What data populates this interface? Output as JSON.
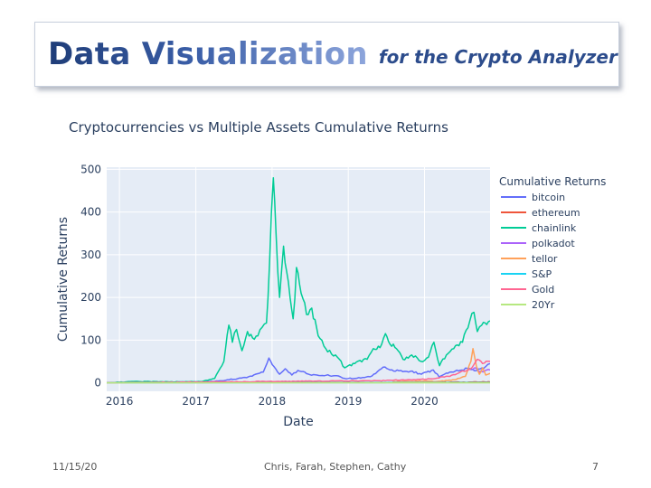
{
  "slide": {
    "title_main": "Data Visualization",
    "title_sub": "for the Crypto Analyzer",
    "footer_date": "11/15/20",
    "footer_authors": "Chris, Farah, Stephen, Cathy",
    "page_number": "7"
  },
  "chart_data": {
    "type": "line",
    "title": "Cryptocurrencies vs Multiple Assets Cumulative Returns",
    "xlabel": "Date",
    "ylabel": "Cumulative Returns",
    "xlim": [
      "2015-11-01",
      "2020-11-10"
    ],
    "ylim": [
      -20,
      505
    ],
    "x_ticks": [
      "2016",
      "2017",
      "2018",
      "2019",
      "2020"
    ],
    "y_ticks": [
      0,
      100,
      200,
      300,
      400,
      500
    ],
    "grid": true,
    "legend_title": "Cumulative Returns",
    "legend_position": "right",
    "series": [
      {
        "name": "bitcoin",
        "color": "#636efa",
        "points": [
          [
            "2015-11-01",
            0
          ],
          [
            "2016-06-01",
            1
          ],
          [
            "2016-12-31",
            2
          ],
          [
            "2017-04-01",
            3
          ],
          [
            "2017-06-01",
            7
          ],
          [
            "2017-09-01",
            12
          ],
          [
            "2017-11-20",
            25
          ],
          [
            "2017-12-17",
            58
          ],
          [
            "2018-01-10",
            38
          ],
          [
            "2018-02-06",
            20
          ],
          [
            "2018-03-05",
            33
          ],
          [
            "2018-04-06",
            18
          ],
          [
            "2018-05-05",
            29
          ],
          [
            "2018-07-01",
            19
          ],
          [
            "2018-11-15",
            16
          ],
          [
            "2018-12-15",
            10
          ],
          [
            "2019-03-01",
            11
          ],
          [
            "2019-04-15",
            14
          ],
          [
            "2019-06-26",
            37
          ],
          [
            "2019-07-20",
            30
          ],
          [
            "2019-09-01",
            28
          ],
          [
            "2019-10-26",
            27
          ],
          [
            "2019-12-17",
            20
          ],
          [
            "2020-02-12",
            30
          ],
          [
            "2020-03-12",
            13
          ],
          [
            "2020-05-01",
            25
          ],
          [
            "2020-08-01",
            34
          ],
          [
            "2020-09-05",
            28
          ],
          [
            "2020-10-20",
            38
          ],
          [
            "2020-11-10",
            45
          ]
        ]
      },
      {
        "name": "ethereum",
        "color": "#ef553b",
        "points": [
          [
            "2015-11-01",
            0
          ],
          [
            "2017-06-01",
            0.5
          ],
          [
            "2018-01-13",
            2
          ],
          [
            "2018-06-01",
            1
          ],
          [
            "2019-06-01",
            0.8
          ],
          [
            "2020-02-01",
            1
          ],
          [
            "2020-08-01",
            1.5
          ],
          [
            "2020-11-10",
            2
          ]
        ]
      },
      {
        "name": "chainlink",
        "color": "#00cc96",
        "points": [
          [
            "2015-11-01",
            0
          ],
          [
            "2016-03-10",
            3
          ],
          [
            "2016-08-01",
            2
          ],
          [
            "2017-02-01",
            3
          ],
          [
            "2017-04-01",
            10
          ],
          [
            "2017-05-15",
            50
          ],
          [
            "2017-06-08",
            135
          ],
          [
            "2017-06-25",
            95
          ],
          [
            "2017-07-15",
            125
          ],
          [
            "2017-08-10",
            75
          ],
          [
            "2017-09-05",
            120
          ],
          [
            "2017-09-30",
            105
          ],
          [
            "2017-10-25",
            110
          ],
          [
            "2017-11-15",
            130
          ],
          [
            "2017-12-05",
            140
          ],
          [
            "2017-12-20",
            280
          ],
          [
            "2018-01-07",
            480
          ],
          [
            "2018-01-20",
            350
          ],
          [
            "2018-02-06",
            200
          ],
          [
            "2018-02-25",
            320
          ],
          [
            "2018-03-12",
            260
          ],
          [
            "2018-03-28",
            200
          ],
          [
            "2018-04-12",
            150
          ],
          [
            "2018-04-28",
            270
          ],
          [
            "2018-05-20",
            210
          ],
          [
            "2018-06-15",
            160
          ],
          [
            "2018-07-10",
            175
          ],
          [
            "2018-08-10",
            110
          ],
          [
            "2018-09-15",
            80
          ],
          [
            "2018-11-10",
            60
          ],
          [
            "2018-12-15",
            35
          ],
          [
            "2019-02-01",
            45
          ],
          [
            "2019-04-01",
            55
          ],
          [
            "2019-05-01",
            80
          ],
          [
            "2019-06-10",
            90
          ],
          [
            "2019-06-28",
            115
          ],
          [
            "2019-07-20",
            90
          ],
          [
            "2019-08-20",
            80
          ],
          [
            "2019-09-20",
            55
          ],
          [
            "2019-11-01",
            65
          ],
          [
            "2019-12-15",
            50
          ],
          [
            "2020-01-20",
            60
          ],
          [
            "2020-02-15",
            95
          ],
          [
            "2020-03-13",
            40
          ],
          [
            "2020-04-15",
            65
          ],
          [
            "2020-05-20",
            80
          ],
          [
            "2020-07-01",
            95
          ],
          [
            "2020-08-05",
            145
          ],
          [
            "2020-08-25",
            165
          ],
          [
            "2020-09-10",
            120
          ],
          [
            "2020-10-01",
            135
          ],
          [
            "2020-11-10",
            145
          ]
        ]
      },
      {
        "name": "polkadot",
        "color": "#ab63fa",
        "points": [
          [
            "2020-08-19",
            30
          ],
          [
            "2020-09-01",
            35
          ],
          [
            "2020-09-20",
            25
          ],
          [
            "2020-10-15",
            28
          ],
          [
            "2020-11-10",
            30
          ]
        ]
      },
      {
        "name": "tellor",
        "color": "#ffa15a",
        "points": [
          [
            "2019-08-01",
            2
          ],
          [
            "2019-12-01",
            4
          ],
          [
            "2020-03-01",
            3
          ],
          [
            "2020-06-01",
            8
          ],
          [
            "2020-07-15",
            15
          ],
          [
            "2020-08-10",
            50
          ],
          [
            "2020-08-20",
            80
          ],
          [
            "2020-09-05",
            40
          ],
          [
            "2020-09-20",
            20
          ],
          [
            "2020-10-05",
            35
          ],
          [
            "2020-10-20",
            18
          ],
          [
            "2020-11-10",
            22
          ]
        ]
      },
      {
        "name": "S&P",
        "color": "#19d3f3",
        "points": [
          [
            "2015-11-01",
            0
          ],
          [
            "2020-11-10",
            0.6
          ]
        ]
      },
      {
        "name": "Gold",
        "color": "#ff6692",
        "points": [
          [
            "2015-11-01",
            0
          ],
          [
            "2019-06-01",
            5
          ],
          [
            "2020-01-01",
            8
          ],
          [
            "2020-05-01",
            15
          ],
          [
            "2020-08-15",
            35
          ],
          [
            "2020-09-10",
            55
          ],
          [
            "2020-10-05",
            45
          ],
          [
            "2020-11-10",
            50
          ]
        ]
      },
      {
        "name": "20Yr",
        "color": "#b6e880",
        "points": [
          [
            "2015-11-01",
            0
          ],
          [
            "2020-11-10",
            0
          ]
        ]
      }
    ]
  }
}
